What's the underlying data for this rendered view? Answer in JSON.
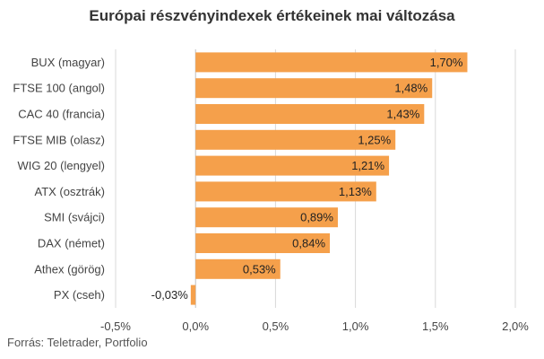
{
  "title": "Európai részvényindexek értékeinek mai változása",
  "source": "Forrás: Teletrader, Portfolio",
  "colors": {
    "bar": "#f5a04b",
    "grid": "#d9d9d9",
    "axis": "#bfbfbf"
  },
  "chart_data": {
    "type": "bar",
    "orientation": "horizontal",
    "title": "Európai részvényindexek értékeinek mai változása",
    "xlabel": "",
    "ylabel": "",
    "xlim": [
      -0.5,
      2.0
    ],
    "grid": true,
    "categories": [
      "BUX (magyar)",
      "FTSE 100 (angol)",
      "CAC 40 (francia)",
      "FTSE MIB (olasz)",
      "WIG 20 (lengyel)",
      "ATX (osztrák)",
      "SMI (svájci)",
      "DAX (német)",
      "Athex (görög)",
      "PX (cseh)"
    ],
    "values": [
      1.7,
      1.48,
      1.43,
      1.25,
      1.21,
      1.13,
      0.89,
      0.84,
      0.53,
      -0.03
    ],
    "value_labels": [
      "1,70%",
      "1,48%",
      "1,43%",
      "1,25%",
      "1,21%",
      "1,13%",
      "0,89%",
      "0,84%",
      "0,53%",
      "-0,03%"
    ],
    "ticks": [
      -0.5,
      0.0,
      0.5,
      1.0,
      1.5,
      2.0
    ],
    "tick_labels": [
      "-0,5%",
      "0,0%",
      "0,5%",
      "1,0%",
      "1,5%",
      "2,0%"
    ]
  }
}
